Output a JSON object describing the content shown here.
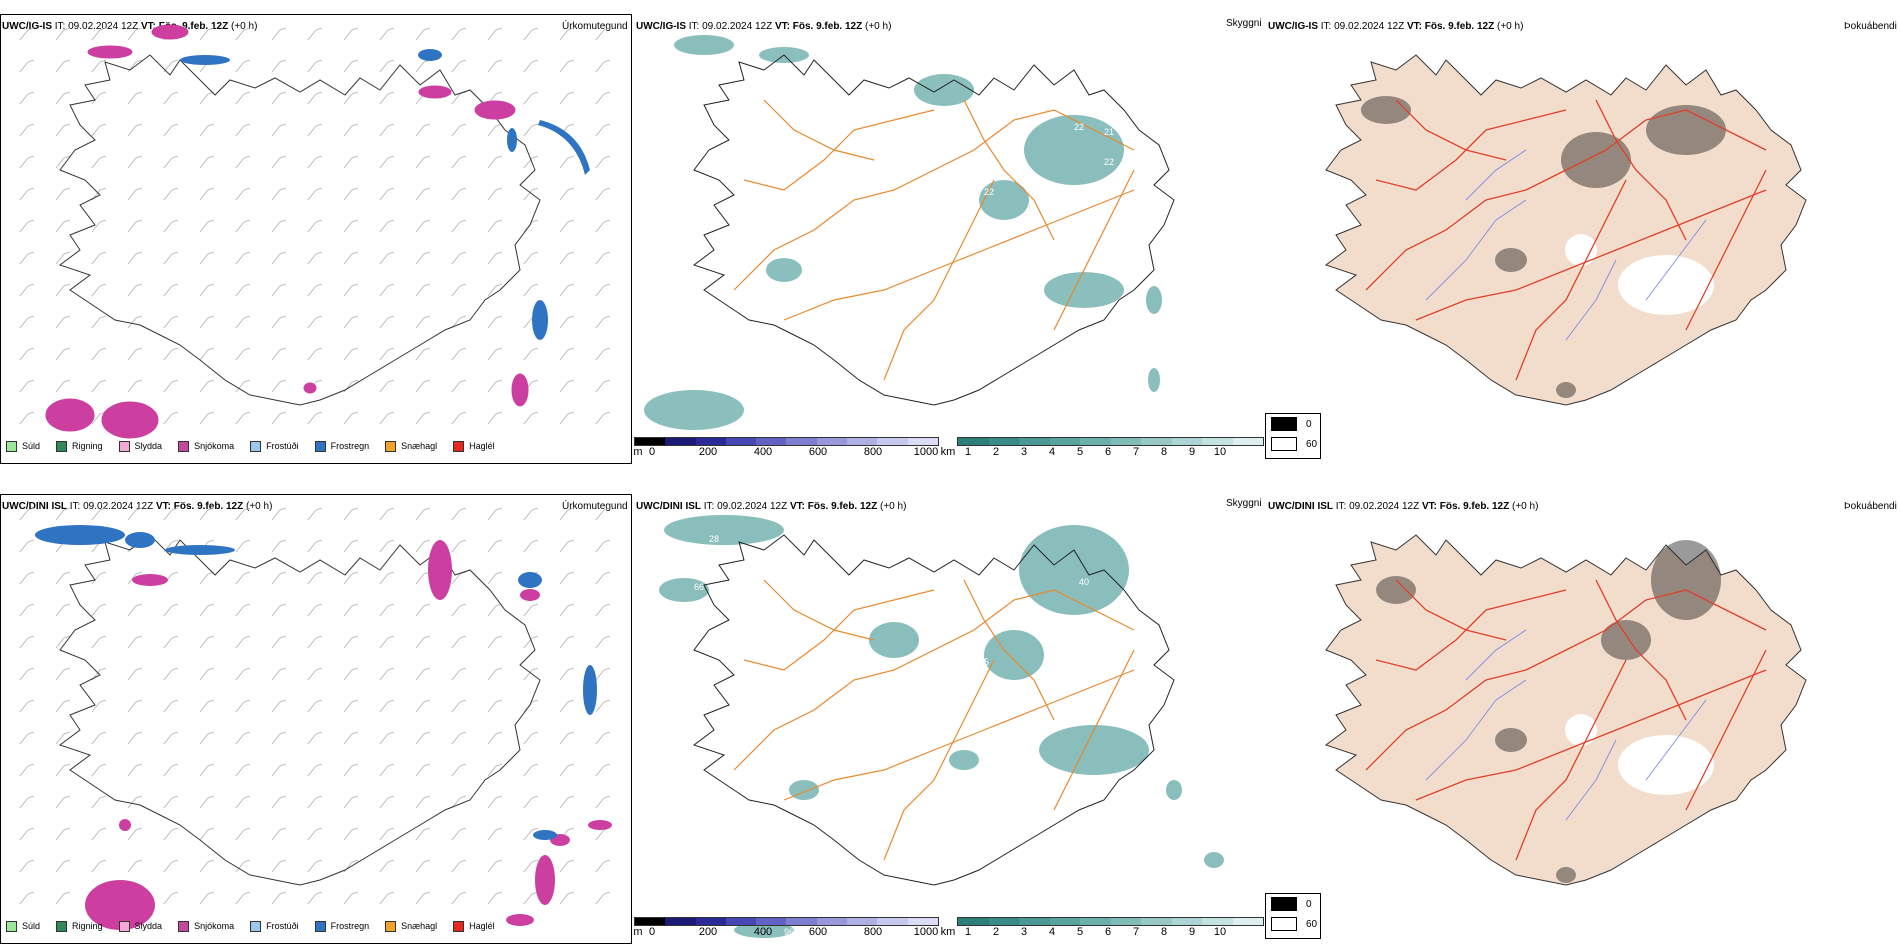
{
  "colors": {
    "land_fill": "#f2dccb",
    "road_orange": "#e8892e",
    "road_red": "#e0402a",
    "river_blue": "#7f8ee8",
    "teal": "#2a8a86",
    "teal_light": "#8cc8c4",
    "snow_magenta": "#cc3fa0",
    "freezing_blue": "#2f74c2"
  },
  "rows": [
    {
      "model": "UWC/IG-IS",
      "it_label": "IT:",
      "it_value": "09.02.2024 12Z",
      "vt_label": "VT:",
      "vt_value": "Fös. 9.feb. 12Z",
      "lead": "(+0 h)"
    },
    {
      "model": "UWC/DINI ISL",
      "it_label": "IT:",
      "it_value": "09.02.2024 12Z",
      "vt_label": "VT:",
      "vt_value": "Fös. 9.feb. 12Z",
      "lead": "(+0 h)"
    }
  ],
  "panel_titles": {
    "precip": "Úrkomutegund",
    "visibility": "Skyggni",
    "fog": "Þokuábendi"
  },
  "precip_legend": [
    {
      "label": "Súld",
      "color": "#9be89b"
    },
    {
      "label": "Rigning",
      "color": "#2e8b57"
    },
    {
      "label": "Slydda",
      "color": "#f4a8d8"
    },
    {
      "label": "Snjókoma",
      "color": "#c04a9c"
    },
    {
      "label": "Frostúði",
      "color": "#9cc8f0"
    },
    {
      "label": "Frostregn",
      "color": "#2f74c2"
    },
    {
      "label": "Snæhagl",
      "color": "#f3a12a"
    },
    {
      "label": "Haglél",
      "color": "#e8281e"
    }
  ],
  "cloud_base_bar": {
    "unit": "m",
    "ticks": [
      "0",
      "200",
      "400",
      "600",
      "800",
      "1000"
    ],
    "colors": [
      "#000000",
      "#1c1c78",
      "#2a2a9a",
      "#4646b4",
      "#6262c4",
      "#7e7ed0",
      "#9898da",
      "#b0b0e4",
      "#c8c8ee",
      "#dcdcf6"
    ]
  },
  "visibility_bar": {
    "unit": "km",
    "ticks": [
      "1",
      "2",
      "3",
      "4",
      "5",
      "6",
      "7",
      "8",
      "9",
      "10"
    ],
    "colors": [
      "#2a7f7a",
      "#3a8c87",
      "#4a9894",
      "#5aa4a0",
      "#6cb0ac",
      "#80bcb8",
      "#96c8c5",
      "#acd4d2",
      "#c4e2e0",
      "#ddefee"
    ]
  },
  "fog_legend": [
    {
      "value": "0",
      "color": "#000000"
    },
    {
      "value": "60",
      "color": "#ffffff"
    }
  ],
  "map_labels_top": [
    "22",
    "21",
    "16",
    "22",
    "22",
    "29"
  ],
  "map_labels_bottom": [
    "28",
    "66",
    "40",
    "55",
    "52",
    "96"
  ]
}
